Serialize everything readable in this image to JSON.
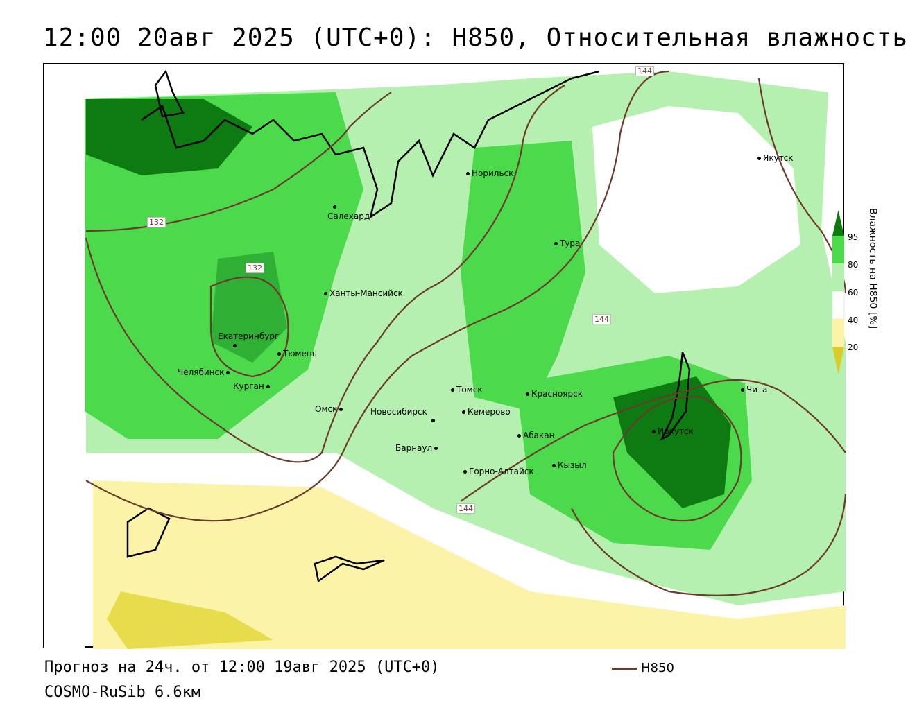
{
  "title": "12:00 20авг 2025 (UTC+0): H850, Относительная влажность",
  "footer": {
    "forecast": "Прогноз на 24ч. от 12:00 19авг 2025 (UTC+0)",
    "model": "COSMO-RuSib 6.6км"
  },
  "legend": {
    "line_label": "H850",
    "line_color": "#6b3a2a"
  },
  "colorbar": {
    "title": "Влажность на H850 [%]",
    "ticks": [
      "95",
      "80",
      "60",
      "40",
      "20"
    ],
    "colors": {
      "c95": "#0e7a12",
      "c80": "#4cd94c",
      "c60": "#b6f0b0",
      "c40": "#ffffff",
      "c20": "#fbf3a8",
      "c0": "#d8cc2a"
    }
  },
  "isolines": [
    "144",
    "132",
    "132",
    "144",
    "144"
  ],
  "cities": {
    "yakutsk": "Якутск",
    "norilsk": "Норильск",
    "salekhard": "Салехард",
    "tura": "Тура",
    "khanty": "Ханты-Мансийск",
    "yekaterinburg": "Екатеринбург",
    "tyumen": "Тюмень",
    "chelyabinsk": "Челябинск",
    "kurgan": "Курган",
    "omsk": "Омск",
    "tomsk": "Томск",
    "novosibirsk": "Новосибирск",
    "kemerovo": "Кемерово",
    "krasnoyarsk": "Красноярск",
    "chita": "Чита",
    "abakan": "Абакан",
    "irkutsk": "Иркутск",
    "barnaul": "Барнаул",
    "kyzyl": "Кызыл",
    "gorno": "Горно-Алтайск"
  }
}
